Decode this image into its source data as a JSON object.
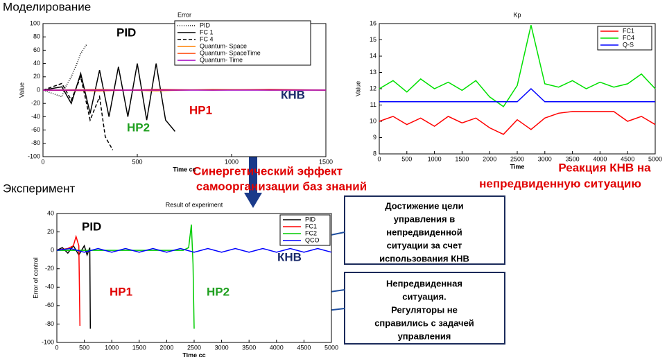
{
  "headings": {
    "modeling": "Моделирование",
    "experiment": "Эксперимент"
  },
  "center_text": [
    "Синергетический эффект",
    "самоорганизации баз знаний"
  ],
  "reaction_text": [
    "Реакция КНВ на",
    "непредвиденную ситуацию"
  ],
  "box_goal": [
    "Достижение цели",
    "управления в",
    "непредвиденной",
    "ситуации за счет",
    "использования КНВ"
  ],
  "box_failure": [
    "Непредвиденная",
    "ситуация.",
    "Регуляторы не",
    "справились с задачей",
    "управления"
  ],
  "chart_data": [
    {
      "type": "line",
      "title": "Error",
      "x_label": "Time cc",
      "y_label": "Value",
      "xlim": [
        0,
        1500
      ],
      "xticks": [
        0,
        500,
        1000,
        1500
      ],
      "ylim": [
        -100,
        100
      ],
      "yticks": [
        -100,
        -80,
        -60,
        -40,
        -20,
        0,
        20,
        40,
        60,
        80,
        100
      ],
      "legend": "upper right",
      "series": [
        {
          "name": "PID",
          "color": "#000000",
          "style": "dotted",
          "x": [
            0,
            50,
            100,
            120,
            150,
            180,
            200,
            230
          ],
          "values": [
            0,
            -5,
            -10,
            5,
            20,
            40,
            55,
            68
          ]
        },
        {
          "name": "FC 1",
          "color": "#000000",
          "style": "solid",
          "x": [
            0,
            100,
            150,
            200,
            250,
            300,
            350,
            400,
            450,
            500,
            550,
            600,
            650,
            700
          ],
          "values": [
            0,
            5,
            -20,
            25,
            -35,
            30,
            -40,
            35,
            -40,
            40,
            -45,
            40,
            -45,
            -62
          ]
        },
        {
          "name": "FC 4",
          "color": "#000000",
          "style": "dashed",
          "x": [
            0,
            100,
            150,
            200,
            250,
            300,
            330,
            370
          ],
          "values": [
            0,
            10,
            -15,
            20,
            -45,
            -10,
            -70,
            -90
          ]
        },
        {
          "name": "Quantum- Space",
          "color": "#ff8000",
          "style": "solid",
          "x": [
            0,
            300,
            600,
            900,
            1200,
            1500
          ],
          "values": [
            0,
            1,
            -1,
            1,
            0,
            0
          ]
        },
        {
          "name": "Quantum- SpaceTime",
          "color": "#ff4000",
          "style": "solid",
          "x": [
            0,
            300,
            600,
            900,
            1200,
            1500
          ],
          "values": [
            0,
            -1,
            1,
            0,
            1,
            0
          ]
        },
        {
          "name": "Quantum- Time",
          "color": "#a000c0",
          "style": "solid",
          "x": [
            0,
            300,
            600,
            900,
            1200,
            1500
          ],
          "values": [
            0,
            0,
            0,
            0,
            0,
            0
          ]
        }
      ],
      "annotations": [
        {
          "text": "PID",
          "color": "#000000"
        },
        {
          "text": "HP1",
          "color": "#e00000"
        },
        {
          "text": "HP2",
          "color": "#20a020"
        },
        {
          "text": "КНВ",
          "color": "#1a2a6a"
        }
      ]
    },
    {
      "type": "line",
      "title": "Kp",
      "x_label": "Time",
      "y_label": "Value",
      "xlim": [
        0,
        5000
      ],
      "xticks": [
        0,
        500,
        1000,
        1500,
        2000,
        2500,
        3000,
        3500,
        4000,
        4500,
        5000
      ],
      "ylim": [
        8,
        16
      ],
      "yticks": [
        8,
        9,
        10,
        11,
        12,
        13,
        14,
        15,
        16
      ],
      "legend": "upper right",
      "series": [
        {
          "name": "FC1",
          "color": "#ff0000",
          "style": "solid",
          "x": [
            0,
            250,
            500,
            750,
            1000,
            1250,
            1500,
            1750,
            2000,
            2250,
            2500,
            2750,
            3000,
            3250,
            3500,
            3750,
            4000,
            4250,
            4500,
            4750,
            5000
          ],
          "values": [
            10,
            10.3,
            9.8,
            10.2,
            9.7,
            10.3,
            9.9,
            10.2,
            9.6,
            9.2,
            10.1,
            9.5,
            10.2,
            10.5,
            10.6,
            10.6,
            10.6,
            10.6,
            10,
            10.3,
            9.8
          ]
        },
        {
          "name": "FC4",
          "color": "#00e000",
          "style": "solid",
          "x": [
            0,
            250,
            500,
            750,
            1000,
            1250,
            1500,
            1750,
            2000,
            2250,
            2500,
            2750,
            3000,
            3250,
            3500,
            3750,
            4000,
            4250,
            4500,
            4750,
            5000
          ],
          "values": [
            12,
            12.5,
            11.8,
            12.6,
            12,
            12.4,
            11.9,
            12.5,
            11.5,
            10.9,
            12.2,
            15.9,
            12.3,
            12.1,
            12.5,
            12,
            12.4,
            12.1,
            12.3,
            12.9,
            12
          ]
        },
        {
          "name": "Q-S",
          "color": "#0000ff",
          "style": "solid",
          "x": [
            0,
            250,
            500,
            750,
            1000,
            1250,
            1500,
            1750,
            2000,
            2250,
            2500,
            2750,
            3000,
            3250,
            3500,
            3750,
            4000,
            4250,
            4500,
            4750,
            5000
          ],
          "values": [
            11.2,
            11.2,
            11.2,
            11.2,
            11.2,
            11.2,
            11.2,
            11.2,
            11.2,
            11.2,
            11.2,
            12,
            11.2,
            11.2,
            11.2,
            11.2,
            11.2,
            11.2,
            11.2,
            11.2,
            11.2
          ]
        }
      ],
      "annotations": []
    },
    {
      "type": "line",
      "title": "Result of experiment",
      "x_label": "Time cc",
      "y_label": "Error of control",
      "xlim": [
        0,
        5000
      ],
      "xticks": [
        0,
        500,
        1000,
        1500,
        2000,
        2500,
        3000,
        3500,
        4000,
        4500,
        5000
      ],
      "ylim": [
        -100,
        40
      ],
      "yticks": [
        -100,
        -80,
        -60,
        -40,
        -20,
        0,
        20,
        40
      ],
      "legend": "upper right",
      "series": [
        {
          "name": "PID",
          "color": "#000000",
          "style": "solid",
          "x": [
            0,
            100,
            200,
            300,
            400,
            500,
            550,
            600,
            610
          ],
          "values": [
            0,
            3,
            -3,
            5,
            -5,
            5,
            -5,
            3,
            -85
          ]
        },
        {
          "name": "FC1",
          "color": "#ff0000",
          "style": "solid",
          "x": [
            0,
            200,
            300,
            350,
            400,
            420
          ],
          "values": [
            0,
            2,
            5,
            15,
            5,
            -82
          ]
        },
        {
          "name": "FC2",
          "color": "#00cc00",
          "style": "solid",
          "x": [
            0,
            2300,
            2400,
            2450,
            2480,
            2500
          ],
          "values": [
            0,
            0,
            3,
            28,
            -15,
            -85
          ]
        },
        {
          "name": "QCO",
          "color": "#0000ff",
          "style": "solid",
          "x": [
            0,
            250,
            500,
            750,
            1000,
            1250,
            1500,
            1750,
            2000,
            2250,
            2500,
            2750,
            3000,
            3250,
            3500,
            3750,
            4000,
            4250,
            4500,
            4750,
            5000
          ],
          "values": [
            0,
            2,
            -2,
            2,
            -2,
            2,
            -2,
            2,
            -2,
            2,
            -2,
            2,
            -2,
            2,
            -2,
            2,
            -2,
            2,
            -2,
            2,
            -2
          ]
        }
      ],
      "annotations": [
        {
          "text": "PID",
          "color": "#000000"
        },
        {
          "text": "HP1",
          "color": "#e00000"
        },
        {
          "text": "HP2",
          "color": "#20a020"
        },
        {
          "text": "КНВ",
          "color": "#1a2a6a"
        }
      ]
    }
  ]
}
